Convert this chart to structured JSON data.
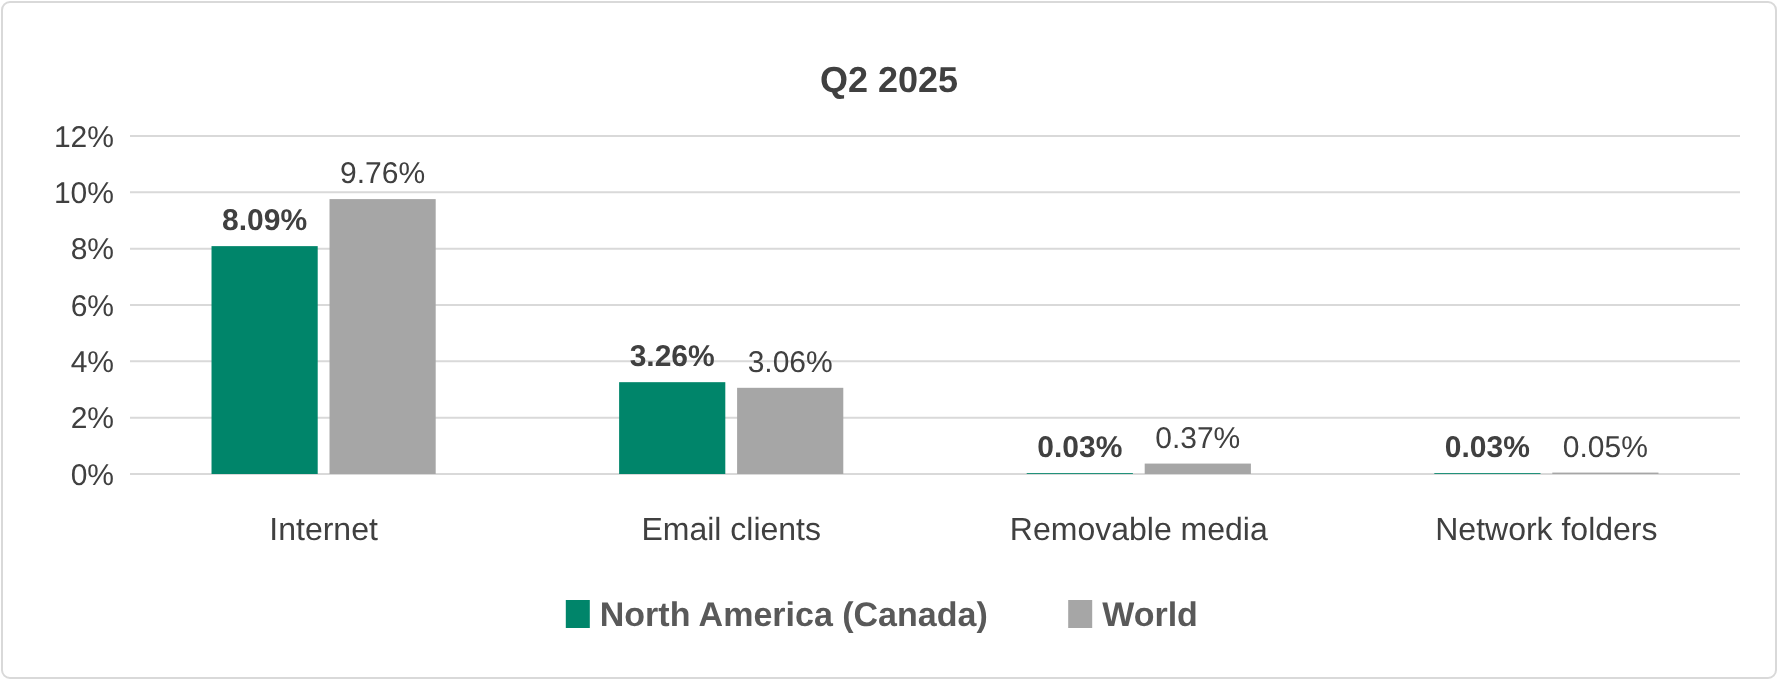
{
  "chart_data": {
    "type": "bar",
    "title": "Q2 2025",
    "categories": [
      "Internet",
      "Email clients",
      "Removable media",
      "Network folders"
    ],
    "series": [
      {
        "name": "North America (Canada)",
        "color": "#00856a",
        "values": [
          8.09,
          3.26,
          0.03,
          0.03
        ],
        "value_labels": [
          "8.09%",
          "3.26%",
          "0.03%",
          "0.03%"
        ]
      },
      {
        "name": "World",
        "color": "#a6a6a6",
        "values": [
          9.76,
          3.06,
          0.37,
          0.05
        ],
        "value_labels": [
          "9.76%",
          "3.06%",
          "0.37%",
          "0.05%"
        ]
      }
    ],
    "ylim": [
      0,
      12
    ],
    "yticks": [
      {
        "value": 0,
        "label": "0%"
      },
      {
        "value": 2,
        "label": "2%"
      },
      {
        "value": 4,
        "label": "4%"
      },
      {
        "value": 6,
        "label": "6%"
      },
      {
        "value": 8,
        "label": "8%"
      },
      {
        "value": 10,
        "label": "10%"
      },
      {
        "value": 12,
        "label": "12%"
      }
    ],
    "grid": "y",
    "legend": "bottom"
  }
}
